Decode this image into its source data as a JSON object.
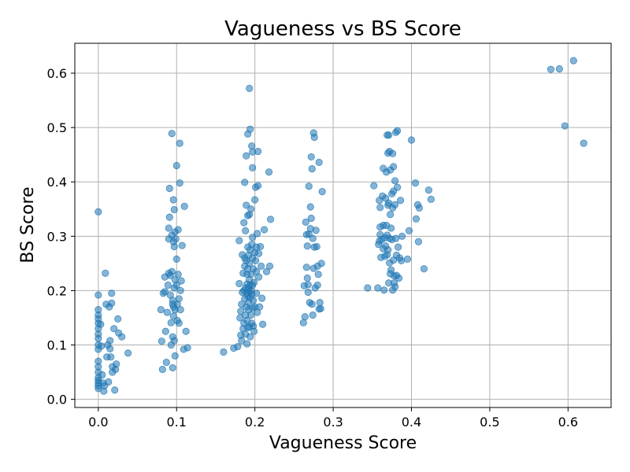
{
  "chart_data": {
    "type": "scatter",
    "title": "Vagueness vs BS Score",
    "xlabel": "Vagueness Score",
    "ylabel": "BS Score",
    "xlim": [
      -0.03,
      0.655
    ],
    "ylim": [
      -0.015,
      0.655
    ],
    "xticks": [
      0.0,
      0.1,
      0.2,
      0.3,
      0.4,
      0.5,
      0.6
    ],
    "xtick_labels": [
      "0.0",
      "0.1",
      "0.2",
      "0.3",
      "0.4",
      "0.5",
      "0.6"
    ],
    "yticks": [
      0.0,
      0.1,
      0.2,
      0.3,
      0.4,
      0.5,
      0.6
    ],
    "ytick_labels": [
      "0.0",
      "0.1",
      "0.2",
      "0.3",
      "0.4",
      "0.5",
      "0.6"
    ],
    "grid": true,
    "marker_color": "#1f77b4",
    "marker_alpha": 0.55,
    "points": [
      [
        0.0,
        0.345
      ],
      [
        0.0,
        0.192
      ],
      [
        0.0,
        0.165
      ],
      [
        0.0,
        0.155
      ],
      [
        0.0,
        0.148
      ],
      [
        0.0,
        0.14
      ],
      [
        0.0,
        0.13
      ],
      [
        0.0,
        0.12
      ],
      [
        0.0,
        0.112
      ],
      [
        0.0,
        0.1
      ],
      [
        0.0,
        0.092
      ],
      [
        0.0,
        0.07
      ],
      [
        0.0,
        0.06
      ],
      [
        0.0,
        0.05
      ],
      [
        0.0,
        0.04
      ],
      [
        0.0,
        0.035
      ],
      [
        0.0,
        0.03
      ],
      [
        0.0,
        0.025
      ],
      [
        0.0,
        0.02
      ],
      [
        0.003,
        0.138
      ],
      [
        0.004,
        0.098
      ],
      [
        0.005,
        0.045
      ],
      [
        0.006,
        0.03
      ],
      [
        0.007,
        0.015
      ],
      [
        0.008,
        0.025
      ],
      [
        0.009,
        0.232
      ],
      [
        0.01,
        0.175
      ],
      [
        0.011,
        0.078
      ],
      [
        0.012,
        0.1
      ],
      [
        0.013,
        0.032
      ],
      [
        0.014,
        0.17
      ],
      [
        0.015,
        0.108
      ],
      [
        0.015,
        0.093
      ],
      [
        0.016,
        0.078
      ],
      [
        0.017,
        0.195
      ],
      [
        0.017,
        0.177
      ],
      [
        0.018,
        0.06
      ],
      [
        0.018,
        0.05
      ],
      [
        0.02,
        0.13
      ],
      [
        0.021,
        0.017
      ],
      [
        0.022,
        0.055
      ],
      [
        0.023,
        0.065
      ],
      [
        0.025,
        0.148
      ],
      [
        0.026,
        0.122
      ],
      [
        0.03,
        0.115
      ],
      [
        0.038,
        0.085
      ],
      [
        0.08,
        0.165
      ],
      [
        0.081,
        0.107
      ],
      [
        0.082,
        0.055
      ],
      [
        0.083,
        0.195
      ],
      [
        0.085,
        0.225
      ],
      [
        0.085,
        0.198
      ],
      [
        0.086,
        0.125
      ],
      [
        0.087,
        0.068
      ],
      [
        0.088,
        0.16
      ],
      [
        0.089,
        0.21
      ],
      [
        0.09,
        0.295
      ],
      [
        0.09,
        0.315
      ],
      [
        0.09,
        0.232
      ],
      [
        0.091,
        0.388
      ],
      [
        0.091,
        0.335
      ],
      [
        0.092,
        0.228
      ],
      [
        0.092,
        0.192
      ],
      [
        0.093,
        0.141
      ],
      [
        0.093,
        0.1
      ],
      [
        0.094,
        0.489
      ],
      [
        0.094,
        0.302
      ],
      [
        0.094,
        0.235
      ],
      [
        0.095,
        0.182
      ],
      [
        0.095,
        0.175
      ],
      [
        0.095,
        0.115
      ],
      [
        0.095,
        0.058
      ],
      [
        0.096,
        0.367
      ],
      [
        0.096,
        0.29
      ],
      [
        0.096,
        0.17
      ],
      [
        0.096,
        0.153
      ],
      [
        0.097,
        0.349
      ],
      [
        0.097,
        0.281
      ],
      [
        0.097,
        0.205
      ],
      [
        0.097,
        0.108
      ],
      [
        0.098,
        0.308
      ],
      [
        0.098,
        0.22
      ],
      [
        0.098,
        0.165
      ],
      [
        0.098,
        0.08
      ],
      [
        0.099,
        0.295
      ],
      [
        0.1,
        0.43
      ],
      [
        0.1,
        0.258
      ],
      [
        0.1,
        0.21
      ],
      [
        0.101,
        0.175
      ],
      [
        0.101,
        0.145
      ],
      [
        0.102,
        0.312
      ],
      [
        0.102,
        0.23
      ],
      [
        0.103,
        0.185
      ],
      [
        0.103,
        0.14
      ],
      [
        0.104,
        0.471
      ],
      [
        0.104,
        0.398
      ],
      [
        0.105,
        0.2
      ],
      [
        0.105,
        0.165
      ],
      [
        0.106,
        0.218
      ],
      [
        0.107,
        0.283
      ],
      [
        0.109,
        0.092
      ],
      [
        0.11,
        0.355
      ],
      [
        0.112,
        0.125
      ],
      [
        0.114,
        0.095
      ],
      [
        0.16,
        0.087
      ],
      [
        0.173,
        0.094
      ],
      [
        0.178,
        0.097
      ],
      [
        0.18,
        0.292
      ],
      [
        0.18,
        0.213
      ],
      [
        0.181,
        0.15
      ],
      [
        0.182,
        0.162
      ],
      [
        0.182,
        0.118
      ],
      [
        0.183,
        0.175
      ],
      [
        0.183,
        0.108
      ],
      [
        0.184,
        0.266
      ],
      [
        0.184,
        0.197
      ],
      [
        0.185,
        0.232
      ],
      [
        0.185,
        0.13
      ],
      [
        0.186,
        0.325
      ],
      [
        0.186,
        0.2
      ],
      [
        0.186,
        0.14
      ],
      [
        0.187,
        0.399
      ],
      [
        0.187,
        0.26
      ],
      [
        0.187,
        0.245
      ],
      [
        0.187,
        0.185
      ],
      [
        0.188,
        0.31
      ],
      [
        0.188,
        0.205
      ],
      [
        0.188,
        0.155
      ],
      [
        0.188,
        0.12
      ],
      [
        0.189,
        0.448
      ],
      [
        0.189,
        0.357
      ],
      [
        0.189,
        0.255
      ],
      [
        0.189,
        0.17
      ],
      [
        0.19,
        0.23
      ],
      [
        0.19,
        0.212
      ],
      [
        0.19,
        0.195
      ],
      [
        0.19,
        0.145
      ],
      [
        0.19,
        0.102
      ],
      [
        0.191,
        0.488
      ],
      [
        0.191,
        0.338
      ],
      [
        0.191,
        0.28
      ],
      [
        0.191,
        0.24
      ],
      [
        0.191,
        0.19
      ],
      [
        0.191,
        0.132
      ],
      [
        0.192,
        0.265
      ],
      [
        0.192,
        0.205
      ],
      [
        0.192,
        0.178
      ],
      [
        0.192,
        0.165
      ],
      [
        0.193,
        0.572
      ],
      [
        0.193,
        0.34
      ],
      [
        0.193,
        0.25
      ],
      [
        0.193,
        0.22
      ],
      [
        0.193,
        0.198
      ],
      [
        0.193,
        0.133
      ],
      [
        0.194,
        0.497
      ],
      [
        0.194,
        0.275
      ],
      [
        0.194,
        0.21
      ],
      [
        0.194,
        0.187
      ],
      [
        0.194,
        0.115
      ],
      [
        0.195,
        0.35
      ],
      [
        0.195,
        0.23
      ],
      [
        0.195,
        0.2
      ],
      [
        0.195,
        0.155
      ],
      [
        0.196,
        0.466
      ],
      [
        0.196,
        0.285
      ],
      [
        0.196,
        0.193
      ],
      [
        0.196,
        0.14
      ],
      [
        0.197,
        0.426
      ],
      [
        0.197,
        0.455
      ],
      [
        0.197,
        0.298
      ],
      [
        0.197,
        0.26
      ],
      [
        0.197,
        0.21
      ],
      [
        0.197,
        0.168
      ],
      [
        0.198,
        0.24
      ],
      [
        0.198,
        0.182
      ],
      [
        0.198,
        0.135
      ],
      [
        0.199,
        0.215
      ],
      [
        0.199,
        0.125
      ],
      [
        0.2,
        0.367
      ],
      [
        0.2,
        0.27
      ],
      [
        0.2,
        0.17
      ],
      [
        0.201,
        0.39
      ],
      [
        0.201,
        0.255
      ],
      [
        0.202,
        0.28
      ],
      [
        0.202,
        0.235
      ],
      [
        0.202,
        0.195
      ],
      [
        0.203,
        0.305
      ],
      [
        0.203,
        0.16
      ],
      [
        0.204,
        0.456
      ],
      [
        0.204,
        0.393
      ],
      [
        0.205,
        0.268
      ],
      [
        0.205,
        0.225
      ],
      [
        0.206,
        0.17
      ],
      [
        0.207,
        0.281
      ],
      [
        0.208,
        0.245
      ],
      [
        0.209,
        0.186
      ],
      [
        0.21,
        0.138
      ],
      [
        0.212,
        0.312
      ],
      [
        0.215,
        0.235
      ],
      [
        0.218,
        0.418
      ],
      [
        0.219,
        0.245
      ],
      [
        0.22,
        0.331
      ],
      [
        0.262,
        0.141
      ],
      [
        0.263,
        0.209
      ],
      [
        0.264,
        0.152
      ],
      [
        0.265,
        0.326
      ],
      [
        0.266,
        0.303
      ],
      [
        0.266,
        0.243
      ],
      [
        0.267,
        0.282
      ],
      [
        0.267,
        0.223
      ],
      [
        0.268,
        0.197
      ],
      [
        0.268,
        0.211
      ],
      [
        0.269,
        0.392
      ],
      [
        0.269,
        0.304
      ],
      [
        0.27,
        0.178
      ],
      [
        0.271,
        0.354
      ],
      [
        0.271,
        0.314
      ],
      [
        0.272,
        0.446
      ],
      [
        0.272,
        0.333
      ],
      [
        0.273,
        0.424
      ],
      [
        0.273,
        0.175
      ],
      [
        0.274,
        0.296
      ],
      [
        0.274,
        0.155
      ],
      [
        0.275,
        0.49
      ],
      [
        0.275,
        0.241
      ],
      [
        0.276,
        0.482
      ],
      [
        0.276,
        0.28
      ],
      [
        0.277,
        0.205
      ],
      [
        0.278,
        0.311
      ],
      [
        0.279,
        0.281
      ],
      [
        0.28,
        0.21
      ],
      [
        0.28,
        0.245
      ],
      [
        0.281,
        0.23
      ],
      [
        0.282,
        0.436
      ],
      [
        0.282,
        0.166
      ],
      [
        0.283,
        0.178
      ],
      [
        0.284,
        0.167
      ],
      [
        0.285,
        0.25
      ],
      [
        0.286,
        0.382
      ],
      [
        0.344,
        0.205
      ],
      [
        0.352,
        0.393
      ],
      [
        0.357,
        0.205
      ],
      [
        0.358,
        0.285
      ],
      [
        0.359,
        0.366
      ],
      [
        0.359,
        0.291
      ],
      [
        0.36,
        0.353
      ],
      [
        0.36,
        0.317
      ],
      [
        0.36,
        0.303
      ],
      [
        0.361,
        0.261
      ],
      [
        0.362,
        0.294
      ],
      [
        0.363,
        0.374
      ],
      [
        0.364,
        0.425
      ],
      [
        0.364,
        0.32
      ],
      [
        0.364,
        0.277
      ],
      [
        0.365,
        0.201
      ],
      [
        0.366,
        0.297
      ],
      [
        0.366,
        0.263
      ],
      [
        0.367,
        0.37
      ],
      [
        0.367,
        0.282
      ],
      [
        0.368,
        0.418
      ],
      [
        0.368,
        0.32
      ],
      [
        0.369,
        0.486
      ],
      [
        0.369,
        0.302
      ],
      [
        0.369,
        0.266
      ],
      [
        0.37,
        0.453
      ],
      [
        0.37,
        0.357
      ],
      [
        0.37,
        0.275
      ],
      [
        0.371,
        0.486
      ],
      [
        0.371,
        0.361
      ],
      [
        0.371,
        0.214
      ],
      [
        0.372,
        0.456
      ],
      [
        0.372,
        0.296
      ],
      [
        0.372,
        0.251
      ],
      [
        0.373,
        0.422
      ],
      [
        0.373,
        0.34
      ],
      [
        0.373,
        0.231
      ],
      [
        0.374,
        0.315
      ],
      [
        0.374,
        0.238
      ],
      [
        0.375,
        0.378
      ],
      [
        0.375,
        0.294
      ],
      [
        0.376,
        0.452
      ],
      [
        0.376,
        0.352
      ],
      [
        0.376,
        0.201
      ],
      [
        0.377,
        0.428
      ],
      [
        0.377,
        0.383
      ],
      [
        0.377,
        0.256
      ],
      [
        0.378,
        0.214
      ],
      [
        0.378,
        0.227
      ],
      [
        0.379,
        0.402
      ],
      [
        0.379,
        0.358
      ],
      [
        0.379,
        0.207
      ],
      [
        0.38,
        0.491
      ],
      [
        0.38,
        0.296
      ],
      [
        0.381,
        0.265
      ],
      [
        0.381,
        0.228
      ],
      [
        0.382,
        0.494
      ],
      [
        0.382,
        0.39
      ],
      [
        0.383,
        0.28
      ],
      [
        0.384,
        0.223
      ],
      [
        0.385,
        0.26
      ],
      [
        0.386,
        0.366
      ],
      [
        0.387,
        0.255
      ],
      [
        0.388,
        0.3
      ],
      [
        0.395,
        0.258
      ],
      [
        0.397,
        0.31
      ],
      [
        0.4,
        0.477
      ],
      [
        0.405,
        0.398
      ],
      [
        0.406,
        0.332
      ],
      [
        0.408,
        0.358
      ],
      [
        0.409,
        0.29
      ],
      [
        0.41,
        0.352
      ],
      [
        0.416,
        0.24
      ],
      [
        0.422,
        0.385
      ],
      [
        0.425,
        0.368
      ],
      [
        0.578,
        0.607
      ],
      [
        0.589,
        0.608
      ],
      [
        0.596,
        0.503
      ],
      [
        0.607,
        0.623
      ],
      [
        0.62,
        0.471
      ]
    ]
  }
}
